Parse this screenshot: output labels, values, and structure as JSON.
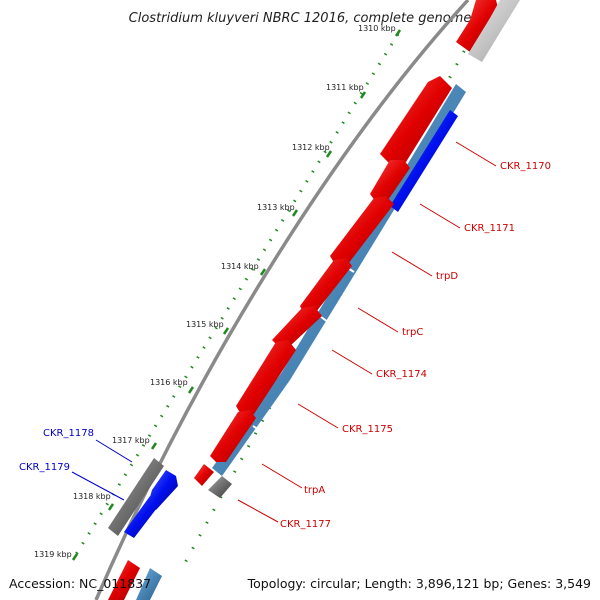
{
  "title": "Clostridium kluyveri NBRC 12016, complete genome",
  "scale_labels": [
    "1310 kbp",
    "1311 kbp",
    "1312 kbp",
    "1313 kbp",
    "1314 kbp",
    "1315 kbp",
    "1316 kbp",
    "1317 kbp",
    "1318 kbp",
    "1319 kbp"
  ],
  "genes": [
    {
      "name": "CKR_1170",
      "strand": "forward",
      "color": "#cc0000"
    },
    {
      "name": "CKR_1171",
      "strand": "forward",
      "color": "#cc0000"
    },
    {
      "name": "trpD",
      "strand": "forward",
      "color": "#cc0000"
    },
    {
      "name": "trpC",
      "strand": "forward",
      "color": "#cc0000"
    },
    {
      "name": "CKR_1174",
      "strand": "forward",
      "color": "#cc0000"
    },
    {
      "name": "CKR_1175",
      "strand": "forward",
      "color": "#cc0000"
    },
    {
      "name": "trpA",
      "strand": "forward",
      "color": "#cc0000"
    },
    {
      "name": "CKR_1177",
      "strand": "forward",
      "color": "#cc0000"
    },
    {
      "name": "CKR_1178",
      "strand": "reverse",
      "color": "#0000cc"
    },
    {
      "name": "CKR_1179",
      "strand": "reverse",
      "color": "#0000cc"
    }
  ],
  "footer": {
    "accession": "Accession: NC_011837",
    "summary": "Topology: circular; Length: 3,896,121 bp; Genes: 3,549"
  },
  "colors": {
    "forward_gene": "#ee1111",
    "reverse_gene": "#0022ee",
    "rna_band": "#4f88b8",
    "gray_feature": "#6e6e6e",
    "tick_green": "#1f8a1f",
    "backbone": "#8a8a8a",
    "forward_label": "#cc0000",
    "reverse_label": "#0000cc"
  }
}
